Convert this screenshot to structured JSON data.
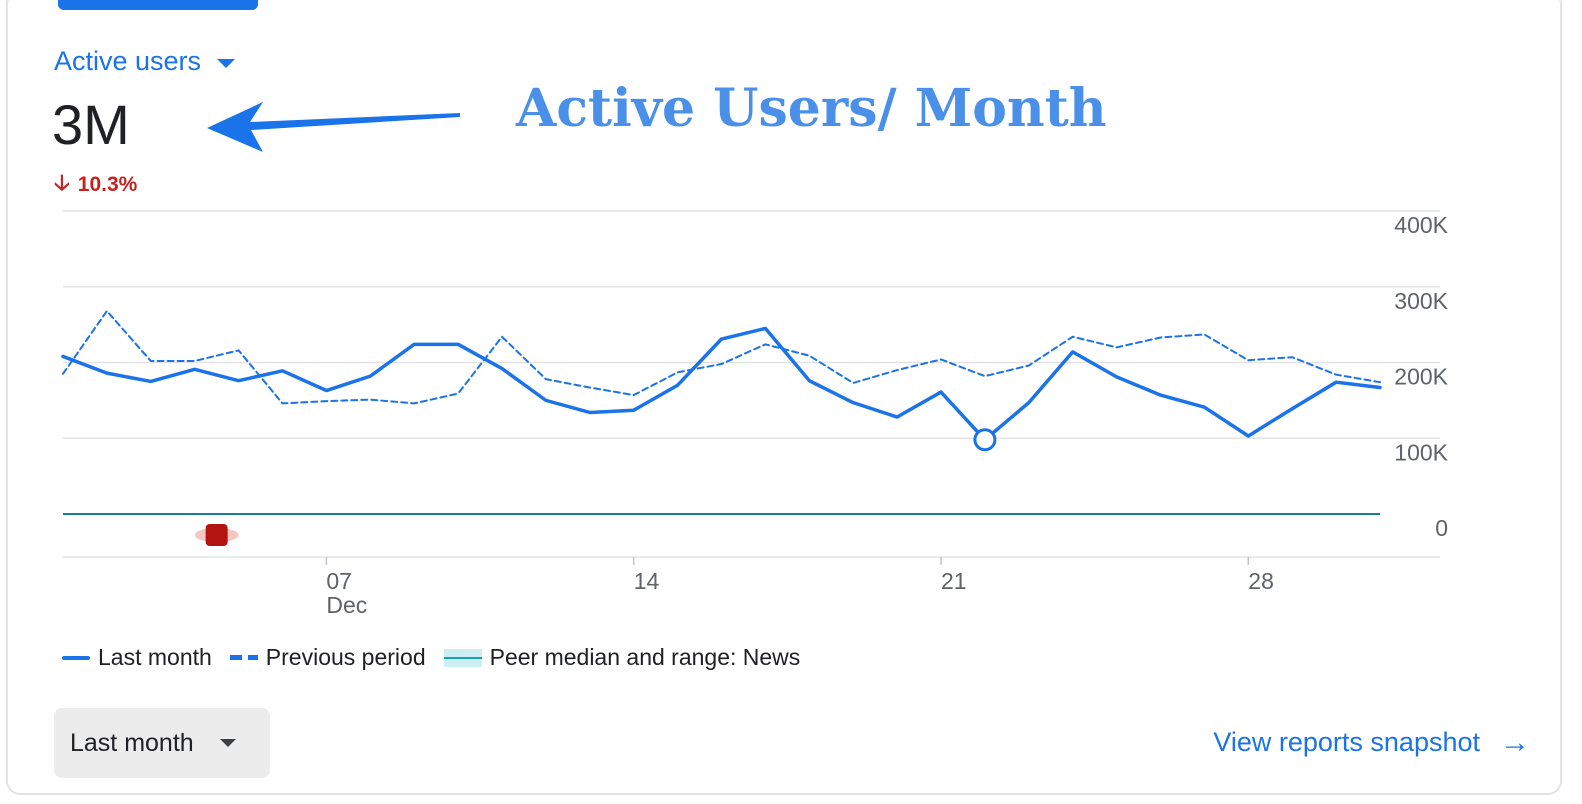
{
  "metric": {
    "label": "Active users",
    "value": "3M",
    "delta": "10.3%",
    "delta_direction": "down"
  },
  "annotation": {
    "text": "Active Users/ Month"
  },
  "legend": {
    "last_month": "Last month",
    "previous_period": "Previous period",
    "peer": "Peer median and range: News"
  },
  "controls": {
    "period_label": "Last month",
    "view_link": "View reports snapshot"
  },
  "colors": {
    "accent": "#1a73e8",
    "negative": "#c5221f",
    "annotation": "#4a90e8",
    "peer": "#12a4af"
  },
  "icons": {
    "dropdown": "triangle-down-icon",
    "delta": "arrow-down-icon",
    "link": "arrow-right-icon",
    "annotation_arrow": "arrow-left-icon"
  },
  "chart_data": {
    "type": "line",
    "title": "",
    "xlabel": "",
    "ylabel": "",
    "ylim": [
      0,
      400000
    ],
    "y_ticks": [
      {
        "value": 400000,
        "label": "400K"
      },
      {
        "value": 300000,
        "label": "300K"
      },
      {
        "value": 200000,
        "label": "200K"
      },
      {
        "value": 100000,
        "label": "100K"
      },
      {
        "value": 0,
        "label": "0"
      }
    ],
    "x_ticks": [
      {
        "day": 7,
        "label": "07",
        "sublabel": "Dec"
      },
      {
        "day": 14,
        "label": "14",
        "sublabel": ""
      },
      {
        "day": 21,
        "label": "21",
        "sublabel": ""
      },
      {
        "day": 28,
        "label": "28",
        "sublabel": ""
      }
    ],
    "x": [
      1,
      2,
      3,
      4,
      5,
      6,
      7,
      8,
      9,
      10,
      11,
      12,
      13,
      14,
      15,
      16,
      17,
      18,
      19,
      20,
      21,
      22,
      23,
      24,
      25,
      26,
      27,
      28,
      29,
      30,
      31
    ],
    "series": [
      {
        "name": "Last month",
        "style": "solid",
        "values": [
          208000,
          186000,
          175000,
          191000,
          176000,
          189000,
          163000,
          182000,
          224000,
          224000,
          192000,
          150000,
          134000,
          137000,
          170000,
          231000,
          245000,
          176000,
          147000,
          128000,
          161000,
          98000,
          147000,
          214000,
          181000,
          157000,
          141000,
          103000,
          139000,
          174000,
          167000
        ]
      },
      {
        "name": "Previous period",
        "style": "dashed",
        "values": [
          185000,
          268000,
          202000,
          202000,
          216000,
          146000,
          149000,
          151000,
          146000,
          159000,
          234000,
          178000,
          167000,
          157000,
          187000,
          198000,
          224000,
          209000,
          173000,
          190000,
          204000,
          182000,
          196000,
          234000,
          220000,
          233000,
          237000,
          203000,
          207000,
          184000,
          174000
        ]
      }
    ],
    "peer": {
      "name": "Peer median and range: News",
      "median": 0
    },
    "markers": [
      {
        "x": 22,
        "type": "hover-point"
      },
      {
        "x": 4.5,
        "type": "anomaly"
      }
    ],
    "grid": true,
    "legend_position": "bottom-left"
  }
}
